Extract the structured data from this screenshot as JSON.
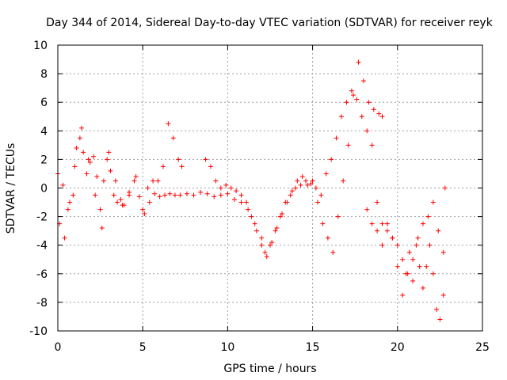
{
  "chart_data": {
    "type": "scatter",
    "title": "Day 344 of 2014, Sidereal Day-to-day VTEC variation (SDTVAR) for receiver reyk",
    "xlabel": "GPS time / hours",
    "ylabel": "SDTVAR / TECUs",
    "xlim": [
      0,
      25
    ],
    "ylim": [
      -10,
      10
    ],
    "xticks": [
      0,
      5,
      10,
      15,
      20,
      25
    ],
    "yticks": [
      -10,
      -8,
      -6,
      -4,
      -2,
      0,
      2,
      4,
      6,
      8,
      10
    ],
    "xtick_labels": [
      "0",
      "5",
      "10",
      "15",
      "20",
      "25"
    ],
    "ytick_labels": [
      "-10",
      "-8",
      "-6",
      "-4",
      "-2",
      "0",
      "2",
      "4",
      "6",
      "8",
      "10"
    ],
    "grid": true,
    "marker": "+",
    "color": "#ff0000",
    "series": [
      {
        "name": "trace-a",
        "x": [
          0.0,
          0.3,
          0.6,
          0.9,
          1.1,
          1.3,
          1.5,
          1.7,
          1.9,
          2.1,
          2.3,
          2.5,
          2.7,
          2.9,
          3.1,
          3.3,
          3.5,
          3.7,
          3.9,
          4.2,
          4.5,
          4.8,
          5.1,
          5.4,
          5.7,
          6.0,
          6.3,
          6.6,
          6.9,
          7.2,
          7.6,
          8.0,
          8.4,
          8.8,
          9.2,
          9.6,
          10.0,
          10.4,
          10.8,
          11.2,
          11.6,
          12.0,
          12.2,
          12.5,
          12.8,
          13.1,
          13.4,
          13.7,
          14.0,
          14.3,
          14.6,
          14.9,
          15.2,
          15.5,
          15.8,
          16.1,
          16.4,
          16.7,
          17.0,
          17.3,
          17.6,
          17.9,
          18.2,
          18.5,
          18.8,
          19.1,
          19.4,
          19.7,
          20.0,
          20.3,
          20.6,
          20.9,
          21.2,
          21.5,
          21.8,
          22.1,
          22.4,
          22.7
        ],
        "y": [
          1.0,
          0.2,
          -1.5,
          -0.5,
          2.8,
          3.5,
          2.5,
          1.0,
          1.8,
          2.2,
          0.8,
          -1.5,
          0.5,
          2.0,
          1.2,
          -0.5,
          -1.0,
          -0.8,
          -1.2,
          -0.3,
          0.5,
          -0.6,
          -1.8,
          -1.0,
          -0.4,
          -0.6,
          -0.5,
          -0.4,
          -0.5,
          -0.5,
          -0.4,
          -0.5,
          -0.3,
          -0.4,
          -0.6,
          -0.5,
          -0.4,
          -0.8,
          -1.0,
          -1.5,
          -2.5,
          -3.5,
          -4.5,
          -4.0,
          -3.0,
          -2.0,
          -1.0,
          -0.5,
          0.0,
          0.2,
          0.5,
          0.3,
          0.0,
          -0.5,
          1.0,
          2.0,
          3.5,
          5.0,
          6.0,
          6.8,
          6.2,
          5.0,
          4.0,
          3.0,
          -1.0,
          -2.5,
          -3.0,
          -3.5,
          -4.0,
          -5.0,
          -6.0,
          -5.0,
          -3.5,
          -2.5,
          -2.0,
          -1.0,
          -3.0,
          -4.5
        ]
      },
      {
        "name": "trace-b",
        "x": [
          0.1,
          0.4,
          0.7,
          1.0,
          1.4,
          1.8,
          2.2,
          2.6,
          3.0,
          3.4,
          3.8,
          4.2,
          4.6,
          5.0,
          5.3,
          5.6,
          5.9,
          6.2,
          6.5,
          6.8,
          7.1,
          7.3
        ],
        "y": [
          -2.5,
          -3.5,
          -1.0,
          1.5,
          4.2,
          2.0,
          -0.5,
          -2.8,
          2.5,
          0.5,
          -1.2,
          -0.5,
          0.8,
          -1.5,
          0.0,
          0.5,
          0.5,
          1.5,
          4.5,
          3.5,
          2.0,
          1.5
        ]
      },
      {
        "name": "trace-c",
        "x": [
          8.7,
          9.0,
          9.3,
          9.6,
          9.9,
          10.2,
          10.5,
          10.8,
          11.1,
          11.4,
          11.7,
          12.0,
          12.3,
          12.6,
          12.9,
          13.2,
          13.5,
          13.8,
          14.1,
          14.4,
          14.7,
          15.0,
          15.3,
          15.6,
          15.9,
          16.2,
          16.5,
          16.8,
          17.1,
          17.4,
          17.7,
          18.0,
          18.3,
          18.6,
          18.9,
          19.1
        ],
        "y": [
          2.0,
          1.5,
          0.5,
          0.0,
          0.2,
          0.0,
          -0.2,
          -0.5,
          -1.0,
          -2.0,
          -3.0,
          -4.0,
          -4.8,
          -3.8,
          -2.8,
          -1.8,
          -1.0,
          -0.2,
          0.5,
          0.8,
          0.2,
          0.5,
          -1.0,
          -2.5,
          -3.5,
          -4.5,
          -2.0,
          0.5,
          3.0,
          6.5,
          8.8,
          7.5,
          6.0,
          5.5,
          5.2,
          5.0
        ]
      },
      {
        "name": "trace-d",
        "x": [
          18.2,
          18.5,
          18.8,
          19.1,
          19.4,
          19.7,
          20.0,
          20.3,
          20.5,
          20.7,
          20.9,
          21.1,
          21.3,
          21.5,
          21.7,
          21.9,
          22.1,
          22.3,
          22.5,
          22.7,
          22.8
        ],
        "y": [
          -1.5,
          -2.5,
          -3.0,
          -4.0,
          -2.5,
          -3.5,
          -5.5,
          -7.5,
          -6.0,
          -4.5,
          -6.5,
          -4.0,
          -5.5,
          -7.0,
          -5.5,
          -4.0,
          -6.0,
          -8.5,
          -9.2,
          -7.5,
          0.0
        ]
      }
    ]
  }
}
